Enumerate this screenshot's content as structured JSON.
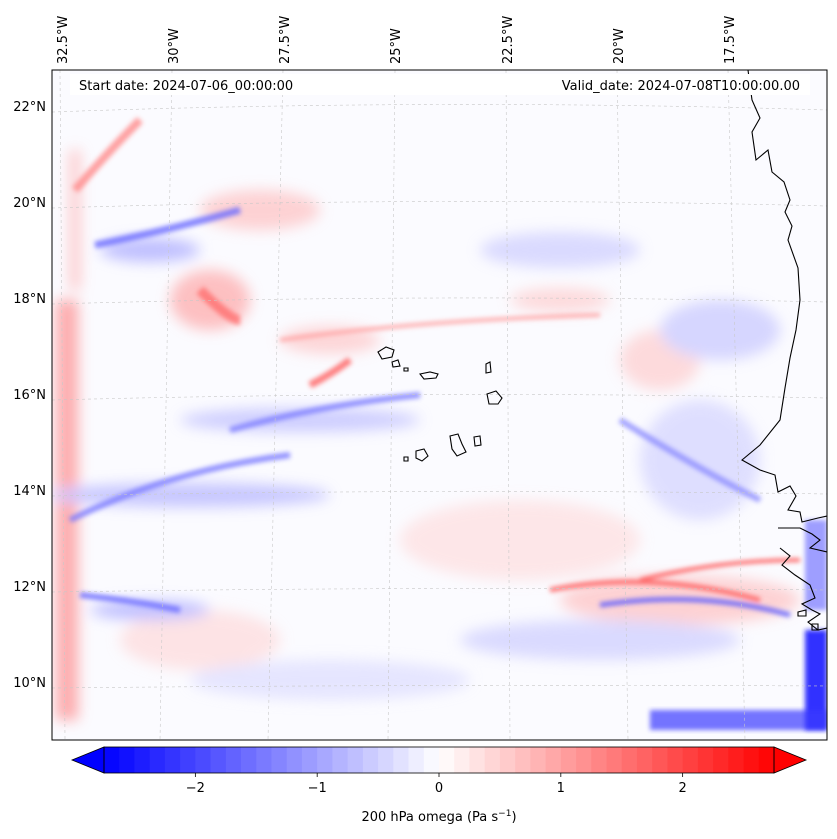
{
  "header": {
    "start_date": "Start date: 2024-07-06_00:00:00",
    "valid_date": "Valid_date: 2024-07-08T10:00:00.00"
  },
  "axes": {
    "lon_labels": [
      "32.5°W",
      "30°W",
      "27.5°W",
      "25°W",
      "22.5°W",
      "20°W",
      "17.5°W"
    ],
    "lat_labels": [
      "22°N",
      "20°N",
      "18°N",
      "16°N",
      "14°N",
      "12°N",
      "10°N"
    ]
  },
  "colorbar": {
    "label": "200 hPa omega (Pa s",
    "label_exp": "−1",
    "label_close": ")",
    "ticks": [
      "−2",
      "−1",
      "0",
      "1",
      "2"
    ],
    "tick_values": [
      -2,
      -1,
      0,
      1,
      2
    ],
    "range": [
      -2.75,
      2.75
    ],
    "low_color": "#0000ff",
    "mid_color": "#ffffff",
    "high_color": "#ff0000"
  },
  "colors": {
    "frame": "#000000",
    "coast": "#000000",
    "grid": "#c8c8c8"
  }
}
